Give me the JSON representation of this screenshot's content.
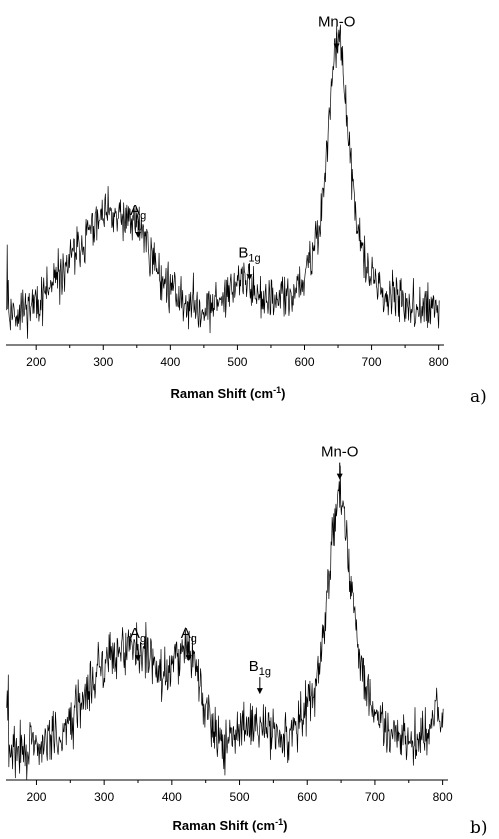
{
  "chart_data": [
    {
      "type": "line",
      "panel_label": "a)",
      "xlabel_main": "Raman Shift (cm",
      "xlabel_sup": "-1",
      "xlabel_end": ")",
      "ylabel": "",
      "xlim": [
        155,
        805
      ],
      "ylim": [
        0,
        1
      ],
      "xticks": [
        200,
        300,
        400,
        500,
        600,
        700,
        800
      ],
      "xtick_labels": [
        "200",
        "300",
        "400",
        "500",
        "600",
        "700",
        "800"
      ],
      "grid": false,
      "noise": 0.045,
      "seed": 11,
      "peaks": [
        {
          "center": 310,
          "width": 55,
          "height": 0.3,
          "shape": "gauss"
        },
        {
          "center": 355,
          "width": 12,
          "height": 0.06,
          "shape": "gauss"
        },
        {
          "center": 505,
          "width": 22,
          "height": 0.09,
          "shape": "gauss"
        },
        {
          "center": 650,
          "width": 20,
          "height": 0.86,
          "shape": "lorentz"
        }
      ],
      "baseline": 0.09,
      "annotations": [
        {
          "main": "A",
          "sub": "g",
          "x": 352,
          "y": 0.4
        },
        {
          "main": "B",
          "sub": "1g",
          "x": 518,
          "y": 0.27
        },
        {
          "main": "Mn-O",
          "sub": "",
          "x": 648,
          "y": 0.98
        }
      ]
    },
    {
      "type": "line",
      "panel_label": "b)",
      "xlabel_main": "Raman Shift (cm",
      "xlabel_sup": "-1",
      "xlabel_end": ")",
      "ylabel": "",
      "xlim": [
        155,
        805
      ],
      "ylim": [
        0,
        1
      ],
      "xticks": [
        200,
        300,
        400,
        500,
        600,
        700,
        800
      ],
      "xtick_labels": [
        "200",
        "300",
        "400",
        "500",
        "600",
        "700",
        "800"
      ],
      "grid": false,
      "noise": 0.05,
      "seed": 29,
      "peaks": [
        {
          "center": 335,
          "width": 55,
          "height": 0.33,
          "shape": "gauss"
        },
        {
          "center": 425,
          "width": 18,
          "height": 0.24,
          "shape": "gauss"
        },
        {
          "center": 520,
          "width": 18,
          "height": 0.07,
          "shape": "gauss"
        },
        {
          "center": 648,
          "width": 22,
          "height": 0.8,
          "shape": "lorentz"
        },
        {
          "center": 795,
          "width": 12,
          "height": 0.1,
          "shape": "gauss"
        }
      ],
      "baseline": 0.08,
      "annotations": [
        {
          "main": "A",
          "sub": "g",
          "x": 350,
          "y": 0.43
        },
        {
          "main": "A",
          "sub": "g",
          "x": 425,
          "y": 0.43
        },
        {
          "main": "B",
          "sub": "1g",
          "x": 530,
          "y": 0.33
        },
        {
          "main": "Mn-O",
          "sub": "",
          "x": 648,
          "y": 0.98
        }
      ]
    }
  ]
}
